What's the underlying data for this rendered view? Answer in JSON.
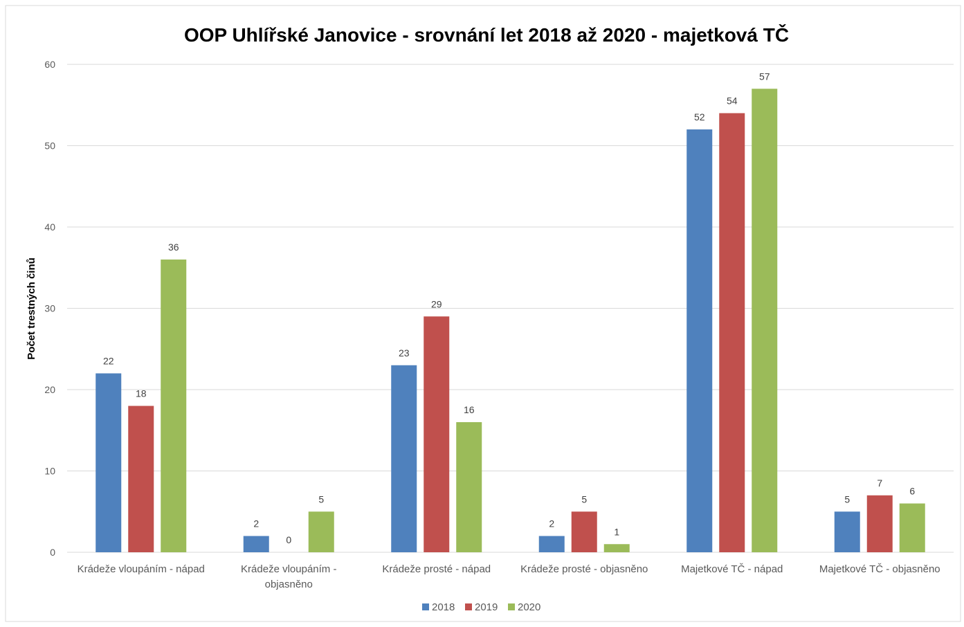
{
  "chart_data": {
    "type": "bar",
    "title": "OOP Uhlířské Janovice - srovnání let 2018 až 2020 - majetková TČ",
    "xlabel": "",
    "ylabel": "Počet trestných činů",
    "ylim": [
      0,
      60
    ],
    "yticks": [
      0,
      10,
      20,
      30,
      40,
      50,
      60
    ],
    "grid": true,
    "legend_position": "bottom",
    "categories": [
      [
        "Krádeže vloupáním - nápad"
      ],
      [
        "Krádeže vloupáním -",
        "objasněno"
      ],
      [
        "Krádeže prosté - nápad"
      ],
      [
        "Krádeže prosté - objasněno"
      ],
      [
        "Majetkové TČ - nápad"
      ],
      [
        "Majetkové TČ - objasněno"
      ]
    ],
    "series": [
      {
        "name": "2018",
        "color": "#4f81bd",
        "values": [
          22,
          2,
          23,
          2,
          52,
          5
        ]
      },
      {
        "name": "2019",
        "color": "#c0504d",
        "values": [
          18,
          0,
          29,
          5,
          54,
          7
        ]
      },
      {
        "name": "2020",
        "color": "#9bbb59",
        "values": [
          36,
          5,
          16,
          1,
          57,
          6
        ]
      }
    ]
  }
}
